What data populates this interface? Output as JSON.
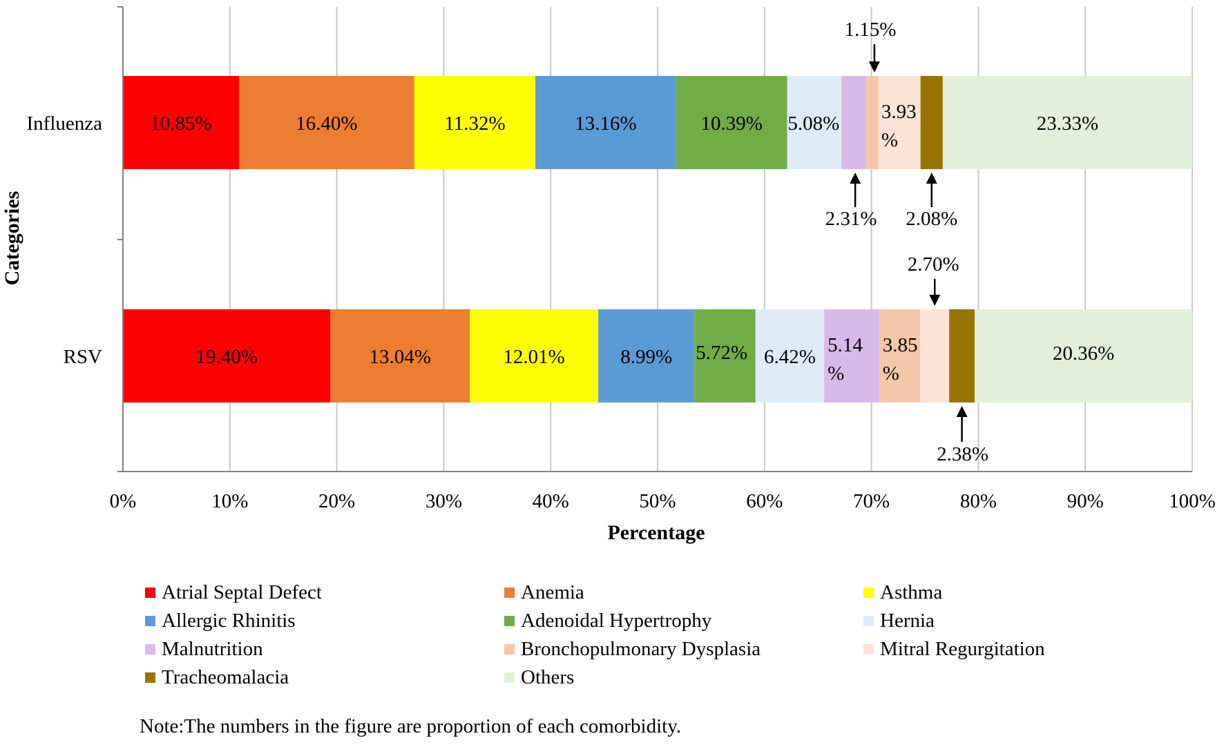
{
  "chart_data": {
    "type": "bar",
    "orientation": "horizontal",
    "stacked": true,
    "categories": [
      "Influenza",
      "RSV"
    ],
    "xlabel": "Percentage",
    "ylabel": "Categories",
    "xlim": [
      0,
      100
    ],
    "xticks": [
      "0%",
      "10%",
      "20%",
      "30%",
      "40%",
      "50%",
      "60%",
      "70%",
      "80%",
      "90%",
      "100%"
    ],
    "grid": true,
    "legend_position": "bottom",
    "series": [
      {
        "name": "Atrial Septal Defect",
        "color": "#ff0000",
        "values": [
          10.85,
          19.4
        ],
        "labels": [
          "10.85%",
          "19.40%"
        ]
      },
      {
        "name": "Anemia",
        "color": "#ed7d31",
        "values": [
          16.4,
          13.04
        ],
        "labels": [
          "16.40%",
          "13.04%"
        ]
      },
      {
        "name": "Asthma",
        "color": "#ffff00",
        "values": [
          11.32,
          12.01
        ],
        "labels": [
          "11.32%",
          "12.01%"
        ]
      },
      {
        "name": "Allergic Rhinitis",
        "color": "#5b9bd5",
        "values": [
          13.16,
          8.99
        ],
        "labels": [
          "13.16%",
          "8.99%"
        ]
      },
      {
        "name": "Adenoidal Hypertrophy",
        "color": "#70ad47",
        "values": [
          10.39,
          5.72
        ],
        "labels": [
          "10.39%",
          "5.72%"
        ]
      },
      {
        "name": "Hernia",
        "color": "#deebf7",
        "values": [
          5.08,
          6.42
        ],
        "labels": [
          "5.08%",
          "6.42%"
        ]
      },
      {
        "name": "Malnutrition",
        "color": "#d9b8ec",
        "values": [
          2.31,
          5.14
        ],
        "labels": [
          "2.31%",
          "5.14 %"
        ]
      },
      {
        "name": "Bronchopulmonary Dysplasia",
        "color": "#f4c7a8",
        "values": [
          1.15,
          3.85
        ],
        "labels": [
          "1.15%",
          "3.85 %"
        ]
      },
      {
        "name": "Mitral Regurgitation",
        "color": "#fbe3d6",
        "values": [
          3.93,
          2.7
        ],
        "labels": [
          "3.93 %",
          "2.70%"
        ]
      },
      {
        "name": "Tracheomalacia",
        "color": "#997300",
        "values": [
          2.08,
          2.38
        ],
        "labels": [
          "2.08%",
          "2.38%"
        ]
      },
      {
        "name": "Others",
        "color": "#e2f0d9",
        "values": [
          23.33,
          20.36
        ],
        "labels": [
          "23.33%",
          "20.36%"
        ]
      }
    ],
    "note": "Note:The numbers in the figure are proportion of each comorbidity."
  }
}
